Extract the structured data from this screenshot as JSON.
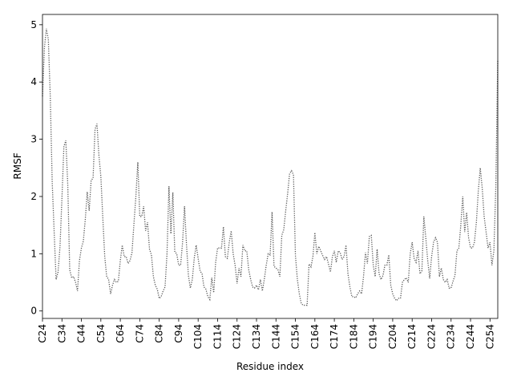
{
  "chart_data": {
    "type": "line",
    "x_label": "Residue index",
    "y_label": "RMSF",
    "x": [
      24,
      25,
      26,
      27,
      28,
      29,
      30,
      31,
      32,
      33,
      34,
      35,
      36,
      37,
      38,
      39,
      40,
      41,
      42,
      43,
      44,
      45,
      46,
      47,
      48,
      49,
      50,
      51,
      52,
      53,
      54,
      55,
      56,
      57,
      58,
      59,
      60,
      61,
      62,
      63,
      64,
      65,
      66,
      67,
      68,
      69,
      70,
      71,
      72,
      73,
      74,
      75,
      76,
      77,
      78,
      79,
      80,
      81,
      82,
      83,
      84,
      85,
      86,
      87,
      88,
      89,
      90,
      91,
      92,
      93,
      94,
      95,
      96,
      97,
      98,
      99,
      100,
      101,
      102,
      103,
      104,
      105,
      106,
      107,
      108,
      109,
      110,
      111,
      112,
      113,
      114,
      115,
      116,
      117,
      118,
      119,
      120,
      121,
      122,
      123,
      124,
      125,
      126,
      127,
      128,
      129,
      130,
      131,
      132,
      133,
      134,
      135,
      136,
      137,
      138,
      139,
      140,
      141,
      142,
      143,
      144,
      145,
      146,
      147,
      148,
      149,
      150,
      151,
      152,
      153,
      154,
      155,
      156,
      157,
      158,
      159,
      160,
      161,
      162,
      163,
      164,
      165,
      166,
      167,
      168,
      169,
      170,
      171,
      172,
      173,
      174,
      175,
      176,
      177,
      178,
      179,
      180,
      181,
      182,
      183,
      184,
      185,
      186,
      187,
      188,
      189,
      190,
      191,
      192,
      193,
      194,
      195,
      196,
      197,
      198,
      199,
      200,
      201,
      202,
      203,
      204,
      205,
      206,
      207,
      208,
      209,
      210,
      211,
      212,
      213,
      214,
      215,
      216,
      217,
      218,
      219,
      220,
      221,
      222,
      223,
      224,
      225,
      226,
      227,
      228,
      229,
      230,
      231,
      232,
      233,
      234,
      235,
      236,
      237,
      238,
      239,
      240,
      241,
      242,
      243,
      244,
      245,
      246,
      247,
      248,
      249,
      250,
      251,
      252,
      253,
      254,
      255,
      256,
      257,
      258
    ],
    "series": [
      {
        "color": "#555555",
        "values": [
          3.75,
          4.6,
          4.93,
          4.75,
          3.75,
          2.25,
          1.38,
          0.55,
          0.68,
          1.12,
          1.97,
          2.87,
          2.98,
          2.2,
          0.72,
          0.58,
          0.6,
          0.5,
          0.35,
          0.88,
          1.1,
          1.22,
          1.6,
          2.08,
          1.75,
          2.28,
          2.32,
          3.17,
          3.27,
          2.72,
          2.35,
          1.63,
          0.95,
          0.6,
          0.55,
          0.3,
          0.45,
          0.55,
          0.5,
          0.52,
          0.88,
          1.15,
          0.95,
          0.95,
          0.83,
          0.88,
          1.02,
          1.52,
          2.0,
          2.6,
          1.65,
          1.65,
          1.83,
          1.4,
          1.55,
          1.08,
          0.98,
          0.6,
          0.45,
          0.38,
          0.22,
          0.25,
          0.35,
          0.42,
          1.0,
          2.18,
          1.35,
          2.07,
          1.03,
          1.0,
          0.8,
          0.8,
          1.2,
          1.83,
          1.17,
          0.62,
          0.4,
          0.55,
          0.92,
          1.15,
          0.92,
          0.7,
          0.65,
          0.42,
          0.38,
          0.25,
          0.2,
          0.58,
          0.32,
          0.85,
          1.1,
          1.1,
          1.1,
          1.47,
          0.95,
          0.92,
          1.2,
          1.4,
          1.0,
          0.8,
          0.48,
          0.75,
          0.6,
          1.15,
          1.05,
          1.05,
          0.72,
          0.55,
          0.42,
          0.4,
          0.45,
          0.37,
          0.55,
          0.35,
          0.55,
          0.8,
          1.0,
          0.98,
          1.73,
          0.78,
          0.75,
          0.72,
          0.6,
          1.32,
          1.42,
          1.75,
          2.05,
          2.4,
          2.45,
          2.38,
          0.97,
          0.55,
          0.3,
          0.13,
          0.1,
          0.1,
          0.1,
          0.82,
          0.77,
          0.95,
          1.37,
          1.0,
          1.13,
          1.05,
          0.97,
          0.9,
          0.95,
          0.82,
          0.68,
          0.95,
          1.05,
          0.85,
          1.05,
          1.02,
          0.9,
          0.95,
          1.15,
          0.65,
          0.42,
          0.25,
          0.25,
          0.23,
          0.3,
          0.35,
          0.3,
          0.6,
          1.02,
          0.83,
          1.3,
          1.32,
          0.8,
          0.6,
          1.08,
          0.65,
          0.55,
          0.62,
          0.8,
          0.8,
          0.98,
          0.45,
          0.3,
          0.22,
          0.18,
          0.22,
          0.22,
          0.5,
          0.55,
          0.58,
          0.5,
          1.0,
          1.2,
          0.92,
          0.85,
          1.05,
          0.65,
          0.7,
          1.65,
          1.28,
          0.88,
          0.57,
          0.95,
          1.2,
          1.28,
          1.2,
          0.6,
          0.75,
          0.55,
          0.5,
          0.55,
          0.4,
          0.4,
          0.52,
          0.62,
          1.05,
          1.1,
          1.5,
          2.0,
          1.38,
          1.72,
          1.28,
          1.1,
          1.1,
          1.2,
          1.55,
          2.1,
          2.5,
          2.15,
          1.65,
          1.38,
          1.1,
          1.2,
          0.8,
          1.05,
          2.18,
          4.38
        ]
      }
    ],
    "xlim": [
      24,
      258
    ],
    "ylim": [
      -0.13,
      5.18
    ],
    "xticks": [
      {
        "value": 24,
        "label": "C24"
      },
      {
        "value": 34,
        "label": "C34"
      },
      {
        "value": 44,
        "label": "C44"
      },
      {
        "value": 54,
        "label": "C54"
      },
      {
        "value": 64,
        "label": "C64"
      },
      {
        "value": 74,
        "label": "C74"
      },
      {
        "value": 84,
        "label": "C84"
      },
      {
        "value": 94,
        "label": "C94"
      },
      {
        "value": 104,
        "label": "C104"
      },
      {
        "value": 114,
        "label": "C114"
      },
      {
        "value": 124,
        "label": "C124"
      },
      {
        "value": 134,
        "label": "C134"
      },
      {
        "value": 144,
        "label": "C144"
      },
      {
        "value": 154,
        "label": "C154"
      },
      {
        "value": 164,
        "label": "C164"
      },
      {
        "value": 174,
        "label": "C174"
      },
      {
        "value": 184,
        "label": "C184"
      },
      {
        "value": 194,
        "label": "C194"
      },
      {
        "value": 204,
        "label": "C204"
      },
      {
        "value": 214,
        "label": "C214"
      },
      {
        "value": 224,
        "label": "C224"
      },
      {
        "value": 234,
        "label": "C234"
      },
      {
        "value": 244,
        "label": "C244"
      },
      {
        "value": 254,
        "label": "C254"
      }
    ],
    "yticks": [
      0,
      1,
      2,
      3,
      4,
      5
    ]
  }
}
